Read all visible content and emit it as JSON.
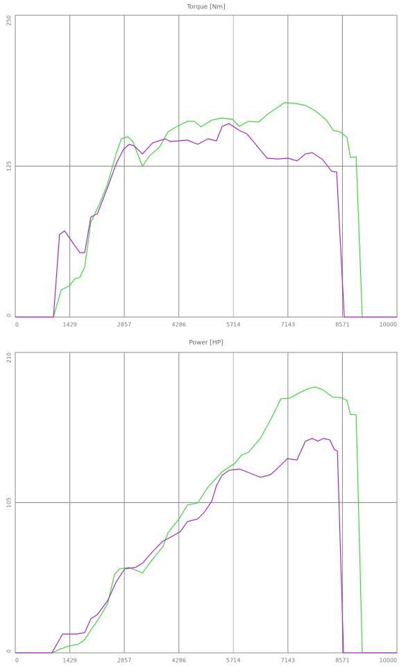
{
  "chart_data": [
    {
      "type": "line",
      "title": "Torque [Nm]",
      "xlim": [
        0,
        10000
      ],
      "xticks": [
        0,
        1429,
        2857,
        4286,
        5714,
        7143,
        8571,
        10000
      ],
      "ylim": [
        0,
        250
      ],
      "yticks": [
        0,
        125,
        250
      ],
      "grid": true,
      "series": [
        {
          "color": "#33dd33",
          "x": [
            0,
            1000,
            1200,
            1420,
            1550,
            1690,
            1820,
            1980,
            2200,
            2420,
            2650,
            2780,
            2950,
            3090,
            3330,
            3510,
            3780,
            4000,
            4240,
            4510,
            4690,
            4870,
            5150,
            5420,
            5690,
            5870,
            6110,
            6380,
            6600,
            6870,
            7050,
            7330,
            7600,
            7870,
            8150,
            8330,
            8510,
            8690,
            8780,
            8930,
            9090,
            10000
          ],
          "values": [
            0,
            0,
            22.4,
            25.9,
            31.6,
            32.8,
            41.4,
            78.7,
            93.1,
            110.3,
            136.2,
            147.7,
            149.4,
            144.8,
            124.7,
            133.3,
            140.8,
            153.4,
            158,
            162.1,
            162.1,
            157.5,
            163.2,
            164.9,
            163.8,
            158,
            162.1,
            161.5,
            167.8,
            173.6,
            177.6,
            177,
            175.3,
            170.7,
            163.2,
            154.6,
            153.4,
            148.9,
            132.2,
            132.8,
            0,
            0
          ]
        },
        {
          "color": "#aa22cc",
          "x": [
            0,
            1000,
            1160,
            1290,
            1510,
            1690,
            1820,
            1980,
            2150,
            2420,
            2650,
            2840,
            2980,
            3110,
            3330,
            3600,
            3930,
            4060,
            4290,
            4510,
            4780,
            5050,
            5270,
            5420,
            5600,
            5870,
            6070,
            6330,
            6600,
            6870,
            7150,
            7380,
            7600,
            7780,
            8050,
            8290,
            8420,
            8620,
            10000
          ],
          "values": [
            0,
            0,
            68.4,
            71.3,
            61.5,
            53.4,
            53.4,
            82.8,
            85.6,
            107.5,
            127.6,
            139.1,
            143.1,
            142,
            135.1,
            144.3,
            147.7,
            145.4,
            146,
            146.6,
            143.1,
            147.7,
            146,
            158,
            160.3,
            154.6,
            151.7,
            141.9,
            131.6,
            131,
            131.6,
            129.3,
            135.1,
            136.2,
            130.5,
            120.7,
            120.1,
            0,
            0
          ]
        }
      ]
    },
    {
      "type": "line",
      "title": "Power [HP]",
      "xlim": [
        0,
        10000
      ],
      "xticks": [
        0,
        1429,
        2857,
        4286,
        5714,
        7143,
        8571,
        10000
      ],
      "ylim": [
        0,
        210
      ],
      "yticks": [
        0,
        105,
        210
      ],
      "grid": true,
      "series": [
        {
          "color": "#33dd33",
          "x": [
            0,
            960,
            1150,
            1420,
            1640,
            1820,
            1980,
            2150,
            2420,
            2600,
            2730,
            2980,
            3330,
            3600,
            3870,
            4000,
            4290,
            4510,
            4780,
            5050,
            5420,
            5750,
            5930,
            6110,
            6420,
            6690,
            6960,
            7200,
            7420,
            7690,
            7870,
            8050,
            8330,
            8510,
            8690,
            8780,
            8930,
            9090,
            10000
          ],
          "values": [
            0,
            0,
            2.4,
            4.9,
            5.8,
            9.2,
            16,
            22.3,
            34.4,
            54.8,
            58.7,
            59.7,
            55.8,
            65.5,
            74.2,
            83.9,
            93.6,
            103.3,
            104.8,
            115.9,
            126.6,
            132.4,
            138.2,
            140.2,
            149.9,
            163,
            177.6,
            178.1,
            181.5,
            184.9,
            185.8,
            183.9,
            178.6,
            178.6,
            176.6,
            166.5,
            166.5,
            0,
            0
          ]
        },
        {
          "color": "#aa22cc",
          "x": [
            0,
            960,
            1240,
            1600,
            1820,
            1980,
            2150,
            2420,
            2650,
            2870,
            3150,
            3330,
            3600,
            3870,
            4150,
            4330,
            4510,
            4780,
            4960,
            5150,
            5270,
            5420,
            5600,
            5870,
            6150,
            6420,
            6690,
            6870,
            7130,
            7380,
            7600,
            7780,
            7930,
            8070,
            8240,
            8360,
            8440,
            8600,
            10000
          ],
          "values": [
            0,
            0,
            13.1,
            13.1,
            14.1,
            23.8,
            26.7,
            36.4,
            50,
            58.7,
            59.7,
            62.6,
            70.8,
            78.1,
            82,
            84.9,
            91.7,
            93.6,
            98.5,
            106.2,
            116.9,
            124.2,
            127.6,
            128.5,
            125.6,
            122.7,
            124.6,
            129,
            135.8,
            134.8,
            147.9,
            149.9,
            147.9,
            149.9,
            148.9,
            142.1,
            141.1,
            0,
            0
          ]
        }
      ]
    }
  ]
}
